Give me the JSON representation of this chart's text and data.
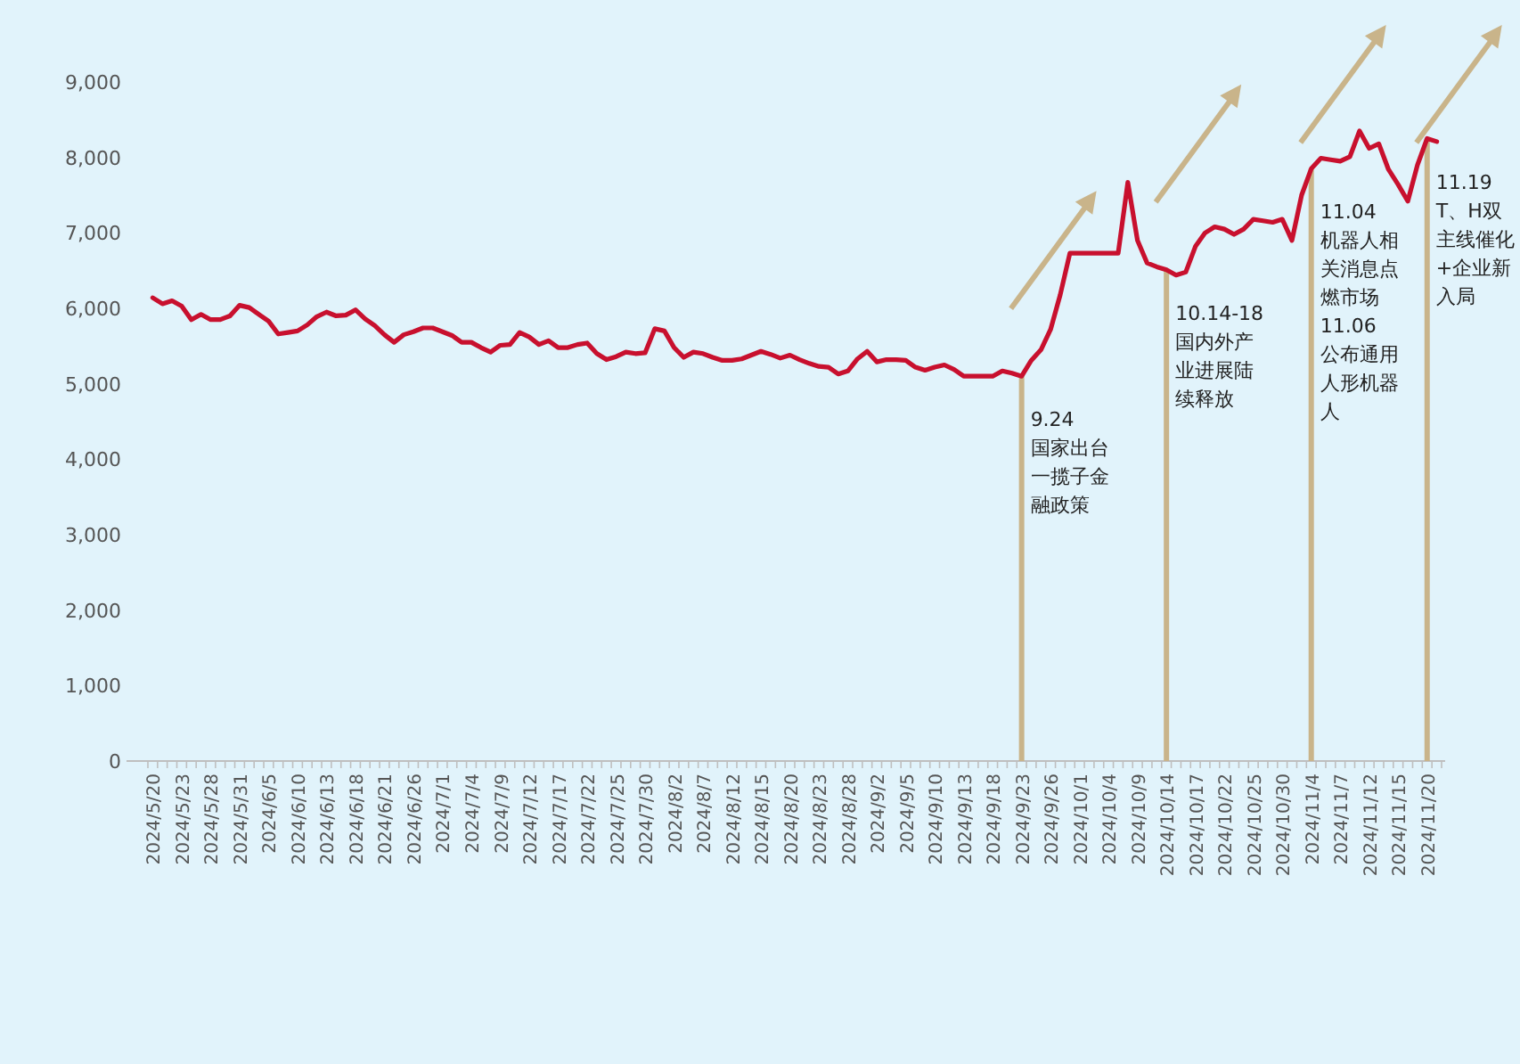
{
  "chart_data": {
    "type": "line",
    "categories": [
      "2024/5/20",
      null,
      null,
      "2024/5/23",
      null,
      null,
      "2024/5/28",
      null,
      null,
      "2024/5/31",
      null,
      null,
      "2024/6/5",
      null,
      null,
      "2024/6/10",
      null,
      null,
      "2024/6/13",
      null,
      null,
      "2024/6/18",
      null,
      null,
      "2024/6/21",
      null,
      null,
      "2024/6/26",
      null,
      null,
      "2024/7/1",
      null,
      null,
      "2024/7/4",
      null,
      null,
      "2024/7/9",
      null,
      null,
      "2024/7/12",
      null,
      null,
      "2024/7/17",
      null,
      null,
      "2024/7/22",
      null,
      null,
      "2024/7/25",
      null,
      null,
      "2024/7/30",
      null,
      null,
      "2024/8/2",
      null,
      null,
      "2024/8/7",
      null,
      null,
      "2024/8/12",
      null,
      null,
      "2024/8/15",
      null,
      null,
      "2024/8/20",
      null,
      null,
      "2024/8/23",
      null,
      null,
      "2024/8/28",
      null,
      null,
      "2024/9/2",
      null,
      null,
      "2024/9/5",
      null,
      null,
      "2024/9/10",
      null,
      null,
      "2024/9/13",
      null,
      null,
      "2024/9/18",
      null,
      null,
      "2024/9/23",
      null,
      null,
      "2024/9/26",
      null,
      null,
      "2024/10/1",
      null,
      null,
      "2024/10/4",
      null,
      null,
      "2024/10/9",
      null,
      null,
      "2024/10/14",
      null,
      null,
      "2024/10/17",
      null,
      null,
      "2024/10/22",
      null,
      null,
      "2024/10/25",
      null,
      null,
      "2024/10/30",
      null,
      null,
      "2024/11/4",
      null,
      null,
      "2024/11/7",
      null,
      null,
      "2024/11/12",
      null,
      null,
      "2024/11/15",
      null,
      null,
      "2024/11/20",
      null
    ],
    "series": [
      {
        "color": "#c8102e",
        "values": [
          6140,
          6060,
          6100,
          6030,
          5850,
          5920,
          5850,
          5850,
          5900,
          6040,
          6010,
          5920,
          5830,
          5660,
          5680,
          5700,
          5780,
          5890,
          5950,
          5900,
          5910,
          5980,
          5860,
          5770,
          5650,
          5550,
          5650,
          5690,
          5740,
          5740,
          5690,
          5640,
          5550,
          5550,
          5480,
          5420,
          5510,
          5520,
          5680,
          5620,
          5520,
          5570,
          5480,
          5480,
          5520,
          5540,
          5400,
          5320,
          5360,
          5420,
          5400,
          5410,
          5730,
          5700,
          5480,
          5350,
          5420,
          5400,
          5350,
          5310,
          5310,
          5330,
          5380,
          5430,
          5390,
          5340,
          5380,
          5320,
          5270,
          5230,
          5220,
          5130,
          5170,
          5330,
          5430,
          5290,
          5320,
          5320,
          5310,
          5220,
          5180,
          5220,
          5250,
          5190,
          5100,
          5100,
          5100,
          5100,
          5170,
          5140,
          5100,
          5310,
          5450,
          5720,
          6180,
          6730,
          6730,
          6730,
          6730,
          6730,
          6730,
          7670,
          6900,
          6600,
          6550,
          6510,
          6440,
          6480,
          6820,
          7000,
          7080,
          7050,
          6980,
          7050,
          7180,
          7160,
          7140,
          7180,
          6900,
          7500,
          7850,
          7990,
          7970,
          7950,
          8010,
          8350,
          8120,
          8180,
          7840,
          7640,
          7420,
          7900,
          8250,
          8210
        ]
      }
    ],
    "ylim": [
      0,
      9000
    ],
    "yticks": [
      {
        "value": 0,
        "label": "0"
      },
      {
        "value": 1000,
        "label": "1,000"
      },
      {
        "value": 2000,
        "label": "2,000"
      },
      {
        "value": 3000,
        "label": "3,000"
      },
      {
        "value": 4000,
        "label": "4,000"
      },
      {
        "value": 5000,
        "label": "5,000"
      },
      {
        "value": 6000,
        "label": "6,000"
      },
      {
        "value": 7000,
        "label": "7,000"
      },
      {
        "value": 8000,
        "label": "8,000"
      },
      {
        "value": 9000,
        "label": "9,000"
      }
    ],
    "grid": false,
    "marker": "none",
    "line_style": "solid",
    "annotations": [
      {
        "text": "9.24\n国家出台一揽子金融政策",
        "x": "2024/9/23",
        "y": 5100
      },
      {
        "text": "10.14-18\n国内外产业进展陆续释放",
        "x": "2024/10/14",
        "y": 6510
      },
      {
        "text": "11.04\n机器人相关消息点燃市场\n11.06\n公布通用人形机器人",
        "x": "2024/11/4",
        "y": 7850
      },
      {
        "text": "11.19\nT、H双主线催化+企业新入局",
        "x": "2024/11/20",
        "y": 8250
      }
    ]
  }
}
